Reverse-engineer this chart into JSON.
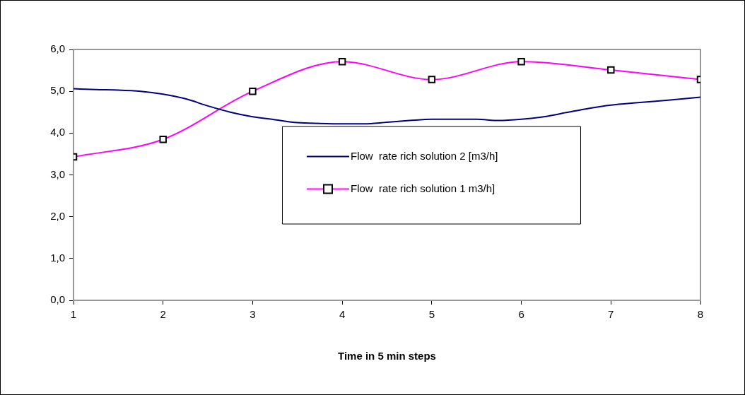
{
  "chart_data": {
    "type": "line",
    "xlabel": "Time in 5 min steps",
    "xlim": [
      1,
      8
    ],
    "xticks": [
      1,
      2,
      3,
      4,
      5,
      6,
      7,
      8
    ],
    "ylim": [
      0,
      6
    ],
    "yticks": [
      {
        "value": 0,
        "label": "0,0"
      },
      {
        "value": 1,
        "label": "1,0"
      },
      {
        "value": 2,
        "label": "2,0"
      },
      {
        "value": 3,
        "label": "3,0"
      },
      {
        "value": 4,
        "label": "4,0"
      },
      {
        "value": 5,
        "label": "5,0"
      },
      {
        "value": 6,
        "label": "6,0"
      }
    ],
    "grid": false,
    "legend": "right",
    "series": [
      {
        "name": "Flow  rate rich solution 2 [m3/h]",
        "color": "#000080",
        "marker": "none",
        "x": [
          1,
          1.25,
          1.5,
          1.75,
          2,
          2.25,
          2.5,
          2.75,
          3,
          3.25,
          3.5,
          3.75,
          4,
          4.25,
          4.5,
          4.75,
          5,
          5.25,
          5.5,
          5.75,
          6,
          6.25,
          6.5,
          6.75,
          7,
          7.25,
          7.5,
          7.75,
          8
        ],
        "values": [
          5.06,
          5.04,
          5.03,
          5.0,
          4.93,
          4.82,
          4.65,
          4.5,
          4.39,
          4.32,
          4.25,
          4.23,
          4.22,
          4.22,
          4.26,
          4.3,
          4.33,
          4.33,
          4.33,
          4.3,
          4.33,
          4.39,
          4.49,
          4.59,
          4.67,
          4.72,
          4.76,
          4.81,
          4.86
        ]
      },
      {
        "name": "Flow  rate rich solution 1 m3/h]",
        "color": "#ff00ff",
        "marker": "square",
        "x": [
          1,
          2,
          3,
          4,
          5,
          6,
          7,
          8
        ],
        "values": [
          3.43,
          3.85,
          5.0,
          5.71,
          5.28,
          5.71,
          5.51,
          5.28
        ]
      }
    ]
  }
}
